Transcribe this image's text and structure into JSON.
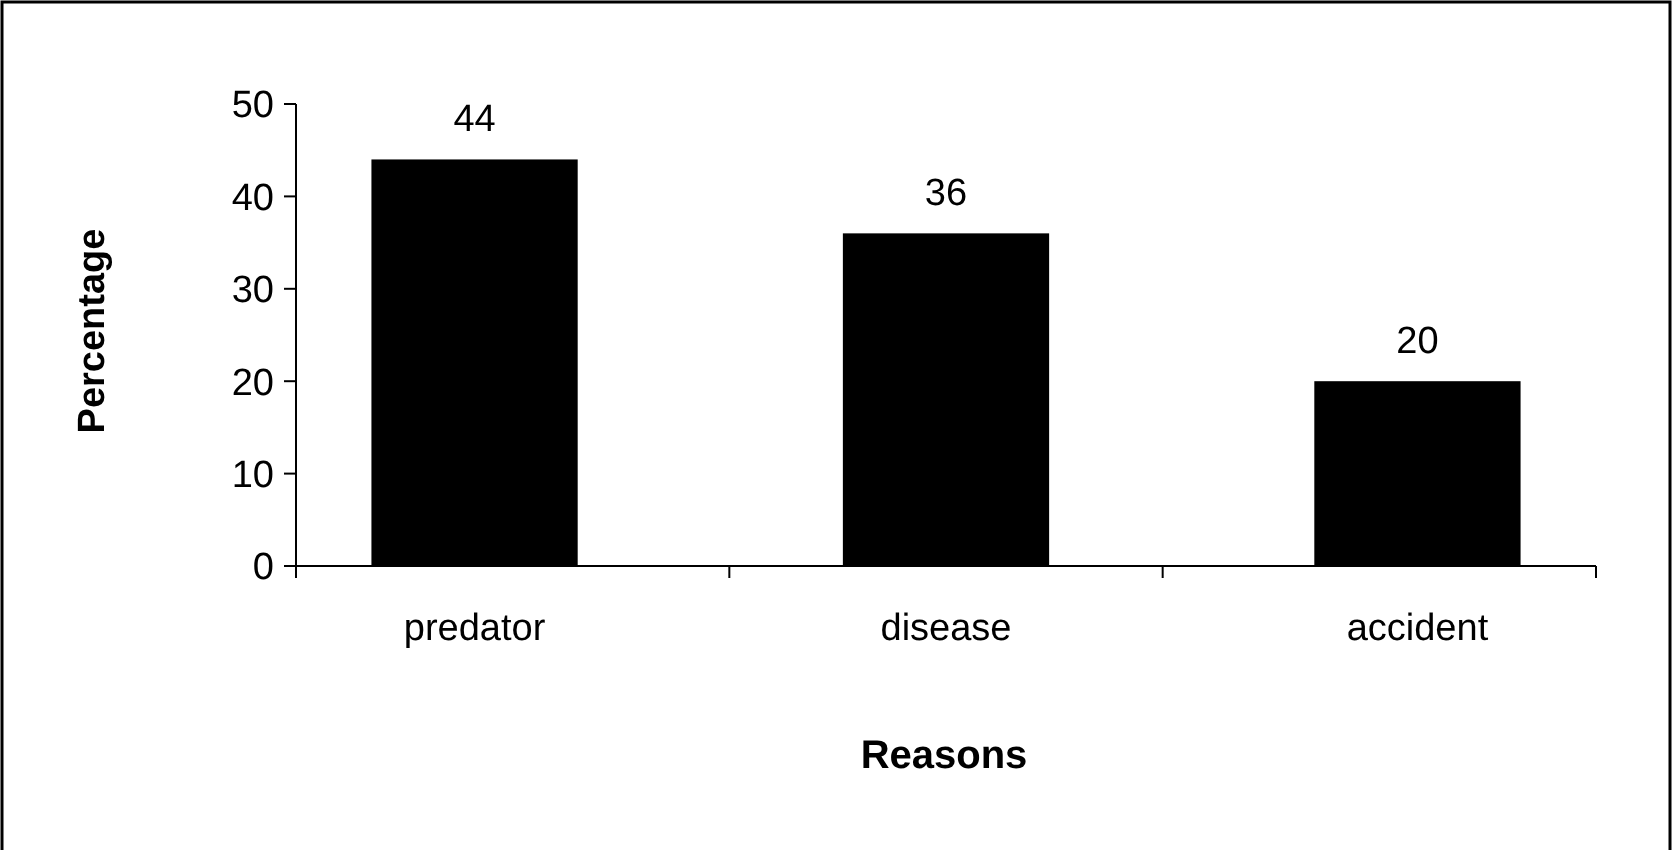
{
  "chart_data": {
    "type": "bar",
    "xlabel": "Reasons",
    "ylabel": "Percentage",
    "categories": [
      "predator",
      "disease",
      "accident"
    ],
    "values": [
      44,
      36,
      20
    ],
    "color": "#000000",
    "ylim": [
      0,
      50
    ],
    "yticks": [
      0,
      10,
      20,
      30,
      40,
      50
    ],
    "grid": false,
    "data_labels": true
  }
}
